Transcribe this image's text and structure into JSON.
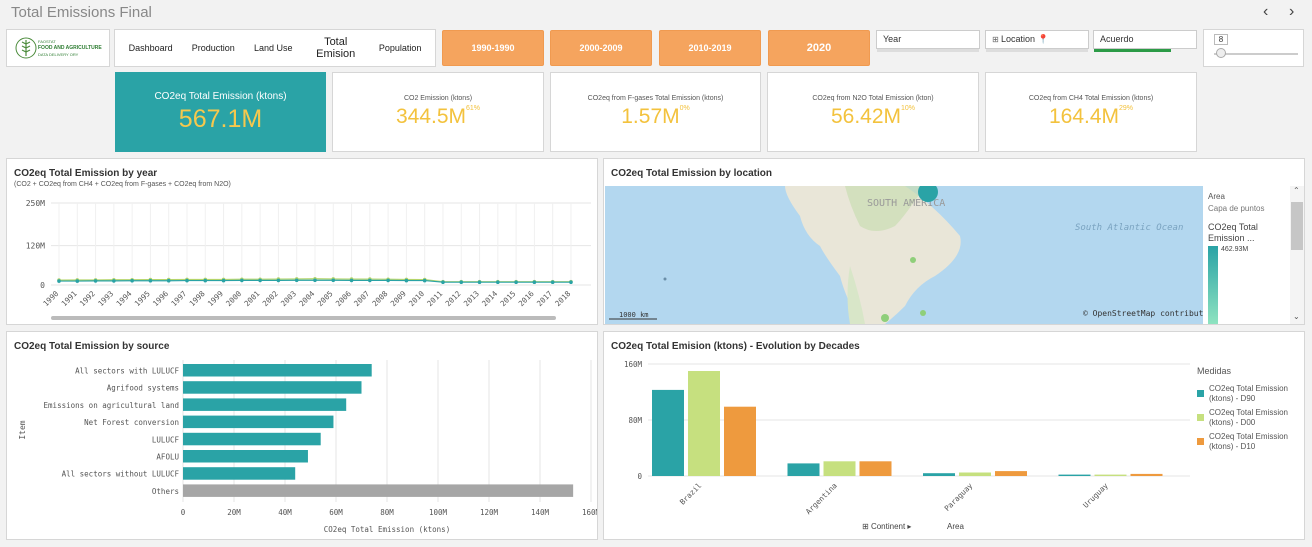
{
  "app": {
    "title": "Total Emissions Final",
    "prev": "‹",
    "next": "›"
  },
  "logo": {
    "line1": "FAOSTAT",
    "line2": "FOOD AND AGRICULTURE",
    "line3": "DATA DELIVERY ORY"
  },
  "nav": {
    "items": [
      "Dashboard",
      "Production",
      "Land Use",
      "Total Emision",
      "Population"
    ]
  },
  "decades": [
    "1990-1990",
    "2000-2009",
    "2010-2019",
    "2020"
  ],
  "filters": {
    "year": "Year",
    "location": "Location",
    "acuerdo": "Acuerdo"
  },
  "slider": {
    "value": "8"
  },
  "kpis": [
    {
      "label": "CO2eq Total Emission (ktons)",
      "value": "567.1M",
      "pct": ""
    },
    {
      "label": "CO2 Emission (ktons)",
      "value": "344.5M",
      "pct": "61%"
    },
    {
      "label": "CO2eq from F-gases Total Emission (ktons)",
      "value": "1.57M",
      "pct": "0%"
    },
    {
      "label": "CO2eq from N2O Total Emission (kton)",
      "value": "56.42M",
      "pct": "10%"
    },
    {
      "label": "CO2eq from CH4 Total Emission (ktons)",
      "value": "164.4M",
      "pct": "29%"
    }
  ],
  "panels": {
    "year": {
      "title": "CO2eq Total Emission by year",
      "subtitle": "(CO2 + CO2eq from CH4 + CO2eq from F-gases + CO2eq from N2O)"
    },
    "location": {
      "title": "CO2eq Total Emission by location",
      "map_label": "SOUTH AMERICA",
      "ocean_label": "South Atlantic Ocean",
      "scale": "1000 km",
      "attribution": "© OpenStreetMap contributors",
      "legend_area": "Area",
      "legend_layer": "Capa de puntos",
      "legend_measure": "CO2eq Total Emission ...",
      "legend_max": "462.93M"
    },
    "source": {
      "title": "CO2eq Total Emission by source"
    },
    "decades": {
      "title": "CO2eq Total Emision (ktons) - Evolution by Decades",
      "legend_title": "Medidas",
      "dim1": "Continent",
      "dim2": "Area"
    }
  },
  "chart_data": [
    {
      "type": "line",
      "title": "CO2eq Total Emission by year",
      "x": [
        "1990",
        "1991",
        "1992",
        "1993",
        "1994",
        "1995",
        "1996",
        "1997",
        "1998",
        "1999",
        "2000",
        "2001",
        "2002",
        "2003",
        "2004",
        "2005",
        "2006",
        "2007",
        "2008",
        "2009",
        "2010",
        "2011",
        "2012",
        "2013",
        "2014",
        "2015",
        "2016",
        "2017",
        "2018"
      ],
      "y_ticks": [
        "250M",
        "120M",
        "0"
      ],
      "ylim": [
        0,
        250000000
      ],
      "series": [
        {
          "values": [
            15000000,
            15500000,
            15500000,
            16000000,
            16000000,
            16500000,
            16500000,
            17000000,
            17000000,
            17000000,
            17500000,
            17500000,
            18000000,
            18500000,
            19000000,
            18500000,
            18000000,
            18000000,
            17500000,
            17000000,
            16500000,
            10000000,
            10000000,
            10000000,
            10000000,
            10000000,
            10000000,
            10000000,
            10000000
          ],
          "color": "#b5d56a"
        },
        {
          "values": [
            12000000,
            12000000,
            12500000,
            12500000,
            13000000,
            13000000,
            13000000,
            13500000,
            13500000,
            13500000,
            14000000,
            14000000,
            14000000,
            14500000,
            14500000,
            14500000,
            14000000,
            14000000,
            14000000,
            13500000,
            13500000,
            8500000,
            8500000,
            8500000,
            8500000,
            8500000,
            8500000,
            8500000,
            8500000
          ],
          "color": "#2aa3a6"
        }
      ]
    },
    {
      "type": "bar",
      "orientation": "horizontal",
      "title": "CO2eq Total Emission by source",
      "ylabel": "Item",
      "xlabel": "CO2eq Total Emission (ktons)",
      "categories": [
        "All sectors with LULUCF",
        "Agrifood systems",
        "Emissions on agricultural land",
        "Net Forest conversion",
        "LULUCF",
        "AFOLU",
        "All sectors without LULUCF",
        "Others"
      ],
      "values": [
        74000000,
        70000000,
        64000000,
        59000000,
        54000000,
        49000000,
        44000000,
        153000000
      ],
      "x_ticks": [
        "0",
        "20M",
        "40M",
        "60M",
        "80M",
        "100M",
        "120M",
        "140M",
        "160M"
      ],
      "xlim": [
        0,
        160000000
      ],
      "colors": {
        "main": "#2aa3a6",
        "others": "#a6a6a6"
      }
    },
    {
      "type": "bar",
      "title": "CO2eq Total Emision (ktons) - Evolution by Decades",
      "categories": [
        "Brazil",
        "Argentina",
        "Paraguay",
        "Uruguay"
      ],
      "y_ticks": [
        "160M",
        "80M",
        "0"
      ],
      "ylim": [
        0,
        160000000
      ],
      "series": [
        {
          "name": "CO2eq Total Emission (ktons) - D90",
          "values": [
            123000000,
            18000000,
            4000000,
            2000000
          ],
          "color": "#2aa3a6"
        },
        {
          "name": "CO2eq Total Emission (ktons) - D00",
          "values": [
            150000000,
            21000000,
            5000000,
            2000000
          ],
          "color": "#c6e07f"
        },
        {
          "name": "CO2eq Total Emission (ktons) - D10",
          "values": [
            99000000,
            21000000,
            7000000,
            3000000
          ],
          "color": "#ee9a3e"
        }
      ]
    }
  ]
}
